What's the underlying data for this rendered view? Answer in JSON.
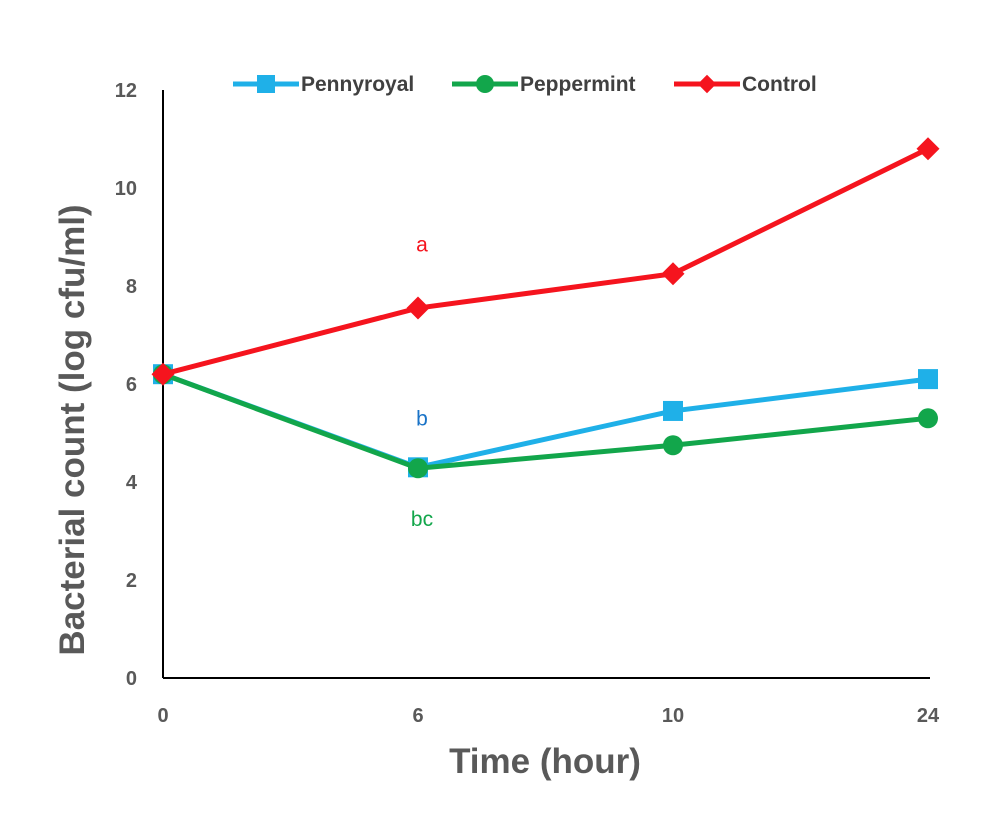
{
  "chart_data": {
    "type": "line",
    "categories": [
      "0",
      "6",
      "10",
      "24"
    ],
    "xlabel": "Time (hour)",
    "ylabel": "Bacterial count (log cfu/ml)",
    "ylim": [
      0,
      12
    ],
    "yticks": [
      0,
      2,
      4,
      6,
      8,
      10,
      12
    ],
    "grid": false,
    "legend_position": "top",
    "series": [
      {
        "name": "Pennyroyal",
        "values": [
          6.2,
          4.3,
          5.45,
          6.1
        ],
        "color": "#1FB0E8",
        "marker": "square"
      },
      {
        "name": "Peppermint",
        "values": [
          6.2,
          4.28,
          4.75,
          5.3
        ],
        "color": "#12A64B",
        "marker": "circle"
      },
      {
        "name": "Control",
        "values": [
          6.2,
          7.55,
          8.25,
          10.8
        ],
        "color": "#F5141E",
        "marker": "diamond"
      }
    ],
    "annotations": [
      {
        "text": "a",
        "category": "6",
        "y": 8.7,
        "color": "#F5141E"
      },
      {
        "text": "b",
        "category": "6",
        "y": 5.15,
        "color": "#1A73C7"
      },
      {
        "text": "bc",
        "category": "6",
        "y": 3.1,
        "color": "#12A64B"
      }
    ]
  }
}
